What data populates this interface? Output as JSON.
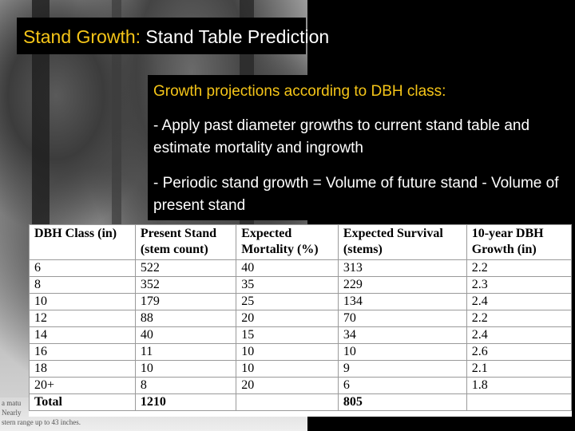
{
  "title": {
    "accent": "Stand Growth:",
    "rest": " Stand Table Prediction"
  },
  "content": {
    "heading": "Growth projections according to DBH class:",
    "bullets": [
      "- Apply past diameter growths to current stand table and estimate mortality and ingrowth",
      "- Periodic stand growth = Volume of future stand - Volume of present stand"
    ]
  },
  "table": {
    "headers": [
      "DBH Class (in)",
      "Present Stand (stem count)",
      "Expected Mortality (%)",
      "Expected Survival (stems)",
      "10-year DBH Growth (in)"
    ],
    "rows": [
      [
        "6",
        "522",
        "40",
        "313",
        "2.2"
      ],
      [
        "8",
        "352",
        "35",
        "229",
        "2.3"
      ],
      [
        "10",
        "179",
        "25",
        "134",
        "2.4"
      ],
      [
        "12",
        "88",
        "20",
        "70",
        "2.2"
      ],
      [
        "14",
        "40",
        "15",
        "34",
        "2.4"
      ],
      [
        "16",
        "11",
        "10",
        "10",
        "2.6"
      ],
      [
        "18",
        "10",
        "10",
        "9",
        "2.1"
      ],
      [
        "20+",
        "8",
        "20",
        "6",
        "1.8"
      ]
    ],
    "total": [
      "Total",
      "1210",
      "",
      "805",
      ""
    ]
  },
  "photo_caption": {
    "lines": [
      "a matu",
      "Nearly",
      "stern range up to 43 inches."
    ]
  }
}
